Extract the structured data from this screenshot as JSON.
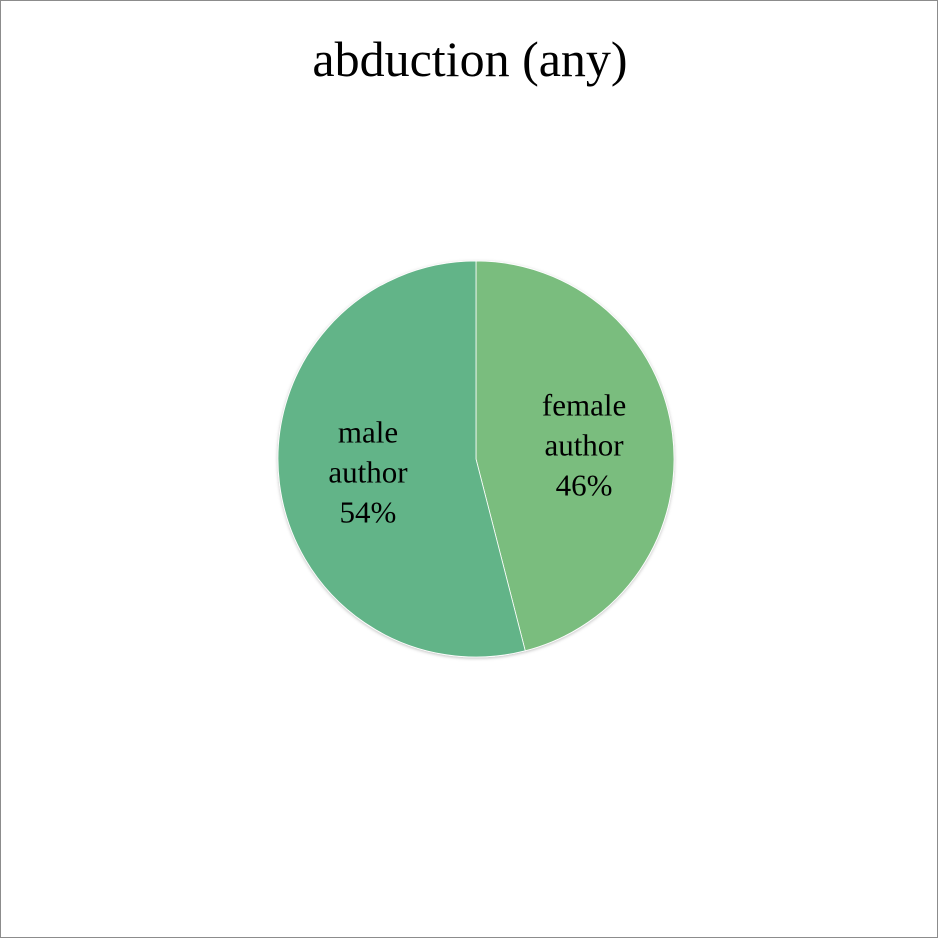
{
  "chart_data": {
    "type": "pie",
    "title": "abduction (any)",
    "categories": [
      "female author",
      "male author"
    ],
    "values": [
      46,
      54
    ],
    "value_labels": [
      "46%",
      "54%"
    ],
    "label_lines": [
      [
        "female",
        "author"
      ],
      [
        "male",
        "author"
      ]
    ],
    "colors": [
      "#7abd7e",
      "#62b488"
    ],
    "start": "12 o'clock",
    "direction": "clockwise",
    "legend": "none"
  }
}
